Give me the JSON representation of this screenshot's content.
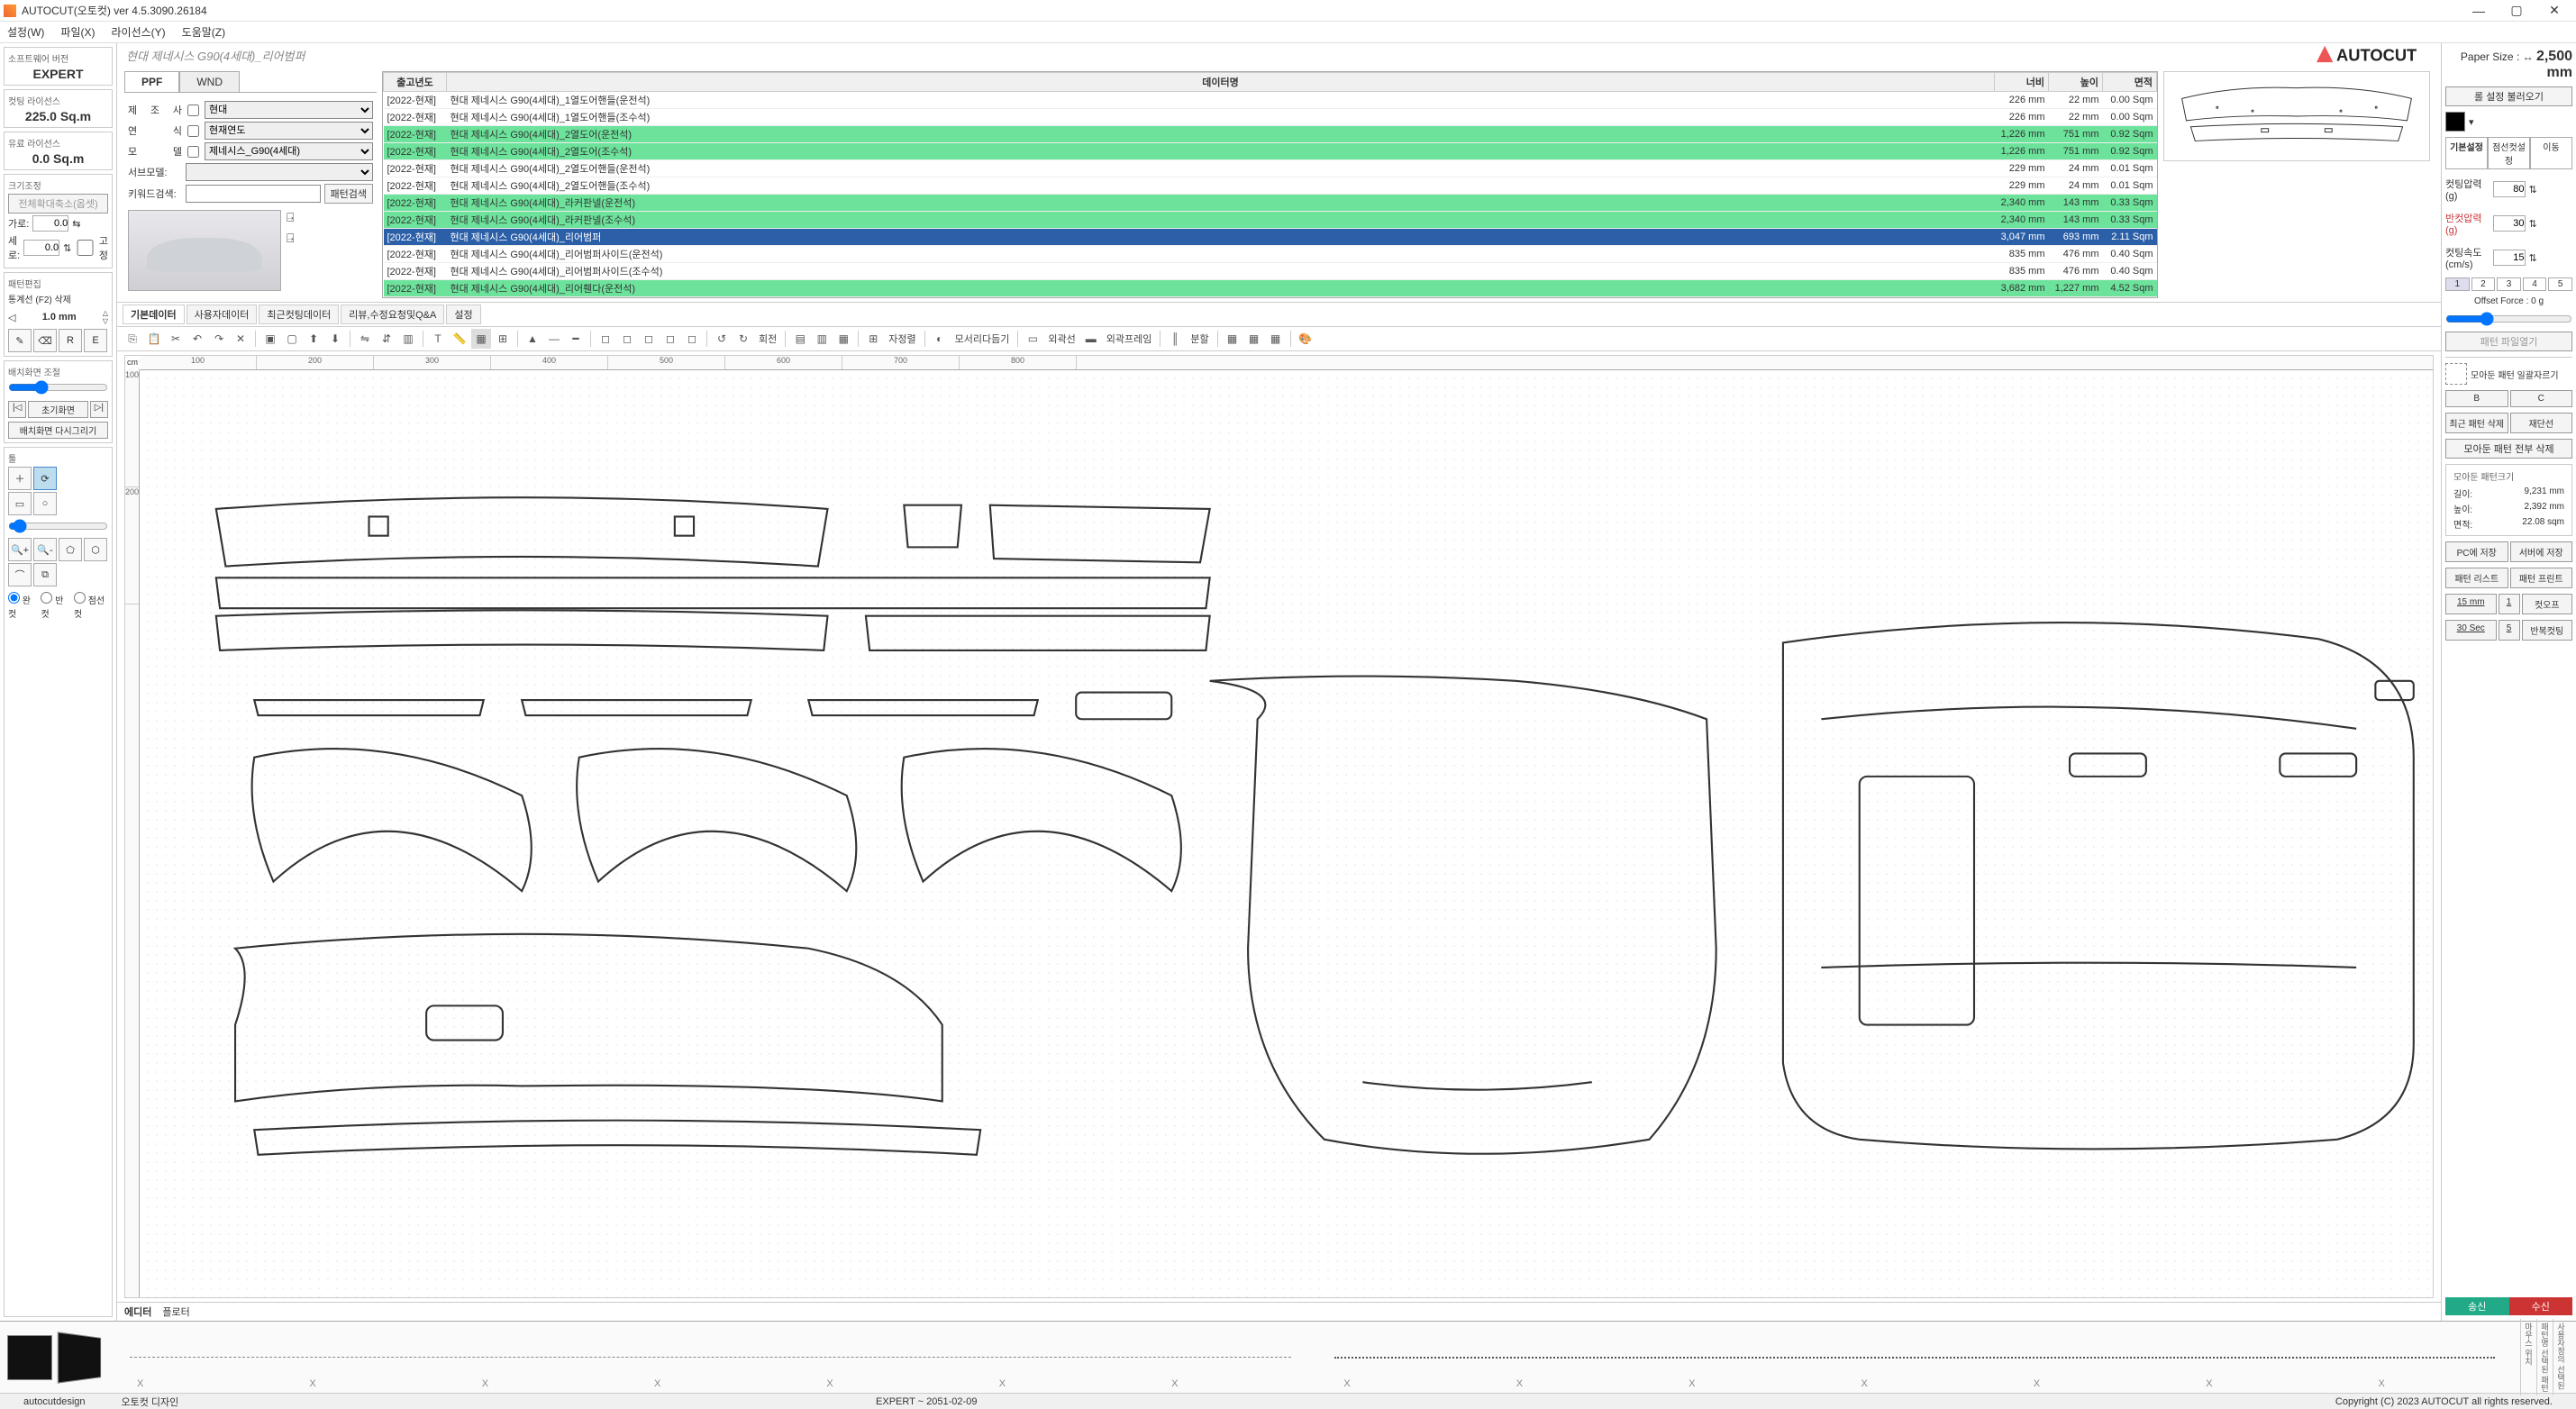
{
  "window": {
    "title": "AUTOCUT(오토컷) ver 4.5.3090.26184"
  },
  "menubar": [
    "설정(W)",
    "파일(X)",
    "라이선스(Y)",
    "도움말(Z)"
  ],
  "leftpanel": {
    "swver_label": "소프트웨어 버전",
    "swver_value": "EXPERT",
    "cutlic_label": "컷팅 라이선스",
    "cutlic_value": "225.0 Sq.m",
    "paidlic_label": "유료 라이선스",
    "paidlic_value": "0.0 Sq.m",
    "resize_label": "크기조정",
    "resize_btn": "전체확대축소(옵셋)",
    "width_label": "가로:",
    "width_val": "0.0",
    "height_label": "세로:",
    "height_val": "0.0",
    "lock_label": "고정",
    "pattern_edit_label": "패턴편집",
    "tangent_label": "통계선 (F2)  삭제",
    "step_value": "1.0 mm",
    "layout_label": "배치화면 조절",
    "initview_btn": "초기화면",
    "redraw_btn": "배치화면 다시그리기",
    "tool_label": "툴",
    "cut_full": "완 컷",
    "cut_half": "반 컷",
    "cut_dot": "점선컷"
  },
  "breadcrumb": "현대 제네시스 G90(4세대)_리어범퍼",
  "search": {
    "tabs": [
      "PPF",
      "WND"
    ],
    "maker_label": "제 조 사",
    "maker_val": "현대",
    "year_label": "연     식",
    "year_val": "현재연도",
    "model_label": "모     델",
    "model_val": "제네시스_G90(4세대)",
    "sub_label": "서브모델:",
    "keyword_label": "키워드검색:",
    "search_btn": "패턴검색"
  },
  "table": {
    "cols": [
      "출고년도",
      "데이터명",
      "너비",
      "높이",
      "면적"
    ],
    "rows": [
      {
        "y": "[2022-현재]",
        "n": "현대 제네시스 G90(4세대)_1열도어핸들(운전석)",
        "w": "226 mm",
        "h": "22 mm",
        "a": "0.00 Sqm",
        "hl": false
      },
      {
        "y": "[2022-현재]",
        "n": "현대 제네시스 G90(4세대)_1열도어핸들(조수석)",
        "w": "226 mm",
        "h": "22 mm",
        "a": "0.00 Sqm",
        "hl": false
      },
      {
        "y": "[2022-현재]",
        "n": "현대 제네시스 G90(4세대)_2열도어(운전석)",
        "w": "1,226 mm",
        "h": "751 mm",
        "a": "0.92 Sqm",
        "hl": true
      },
      {
        "y": "[2022-현재]",
        "n": "현대 제네시스 G90(4세대)_2열도어(조수석)",
        "w": "1,226 mm",
        "h": "751 mm",
        "a": "0.92 Sqm",
        "hl": true
      },
      {
        "y": "[2022-현재]",
        "n": "현대 제네시스 G90(4세대)_2열도어핸들(운전석)",
        "w": "229 mm",
        "h": "24 mm",
        "a": "0.01 Sqm",
        "hl": false
      },
      {
        "y": "[2022-현재]",
        "n": "현대 제네시스 G90(4세대)_2열도어핸들(조수석)",
        "w": "229 mm",
        "h": "24 mm",
        "a": "0.01 Sqm",
        "hl": false
      },
      {
        "y": "[2022-현재]",
        "n": "현대 제네시스 G90(4세대)_라커판넬(운전석)",
        "w": "2,340 mm",
        "h": "143 mm",
        "a": "0.33 Sqm",
        "hl": true
      },
      {
        "y": "[2022-현재]",
        "n": "현대 제네시스 G90(4세대)_라커판넬(조수석)",
        "w": "2,340 mm",
        "h": "143 mm",
        "a": "0.33 Sqm",
        "hl": true
      },
      {
        "y": "[2022-현재]",
        "n": "현대 제네시스 G90(4세대)_리어범퍼",
        "w": "3,047 mm",
        "h": "693 mm",
        "a": "2.11 Sqm",
        "sel": true
      },
      {
        "y": "[2022-현재]",
        "n": "현대 제네시스 G90(4세대)_리어범퍼사이드(운전석)",
        "w": "835 mm",
        "h": "476 mm",
        "a": "0.40 Sqm",
        "hl": false
      },
      {
        "y": "[2022-현재]",
        "n": "현대 제네시스 G90(4세대)_리어범퍼사이드(조수석)",
        "w": "835 mm",
        "h": "476 mm",
        "a": "0.40 Sqm",
        "hl": false
      },
      {
        "y": "[2022-현재]",
        "n": "현대 제네시스 G90(4세대)_리어휀다(운전석)",
        "w": "3,682 mm",
        "h": "1,227 mm",
        "a": "4.52 Sqm",
        "hl": true
      }
    ]
  },
  "subtabs": [
    "기본데이터",
    "사용자데이터",
    "최근컷팅데이터",
    "리뷰,수정요청및Q&A",
    "설정"
  ],
  "toolbar_labels": {
    "rotate": "회전",
    "align": "자정렬",
    "round": "모서리다듬기",
    "outline": "외곽선",
    "outframe": "외곽프레임",
    "split": "분할"
  },
  "ruler": {
    "unit": "cm",
    "h": [
      "100",
      "200",
      "300",
      "400",
      "500",
      "600",
      "700",
      "800"
    ],
    "v": [
      "100",
      "200"
    ]
  },
  "bottomtabs": [
    "에디터",
    "플로터"
  ],
  "right": {
    "papersize_label": "Paper Size : ↔",
    "papersize_val": "2,500 mm",
    "loadsetting_btn": "롤 설정 불러오기",
    "color": "#000000",
    "tabs": [
      "기본설정",
      "점선컷설정",
      "이동"
    ],
    "cut_pressure_label": "컷팅압력(g)",
    "cut_pressure_val": "80",
    "half_pressure_label": "반컷압력(g)",
    "half_pressure_val": "30",
    "cut_speed_label": "컷팅속도(cm/s)",
    "cut_speed_val": "15",
    "offset_label": "Offset Force : 0 g",
    "open_pattern_btn": "패턴 파일열기",
    "batch_cut_label": "모아둔 패턴 일괄자르기",
    "bc_b": "B",
    "bc_c": "C",
    "recent_del": "최근 패턴 삭제",
    "cutline": "재단선",
    "all_del": "모아둔 패턴 전부 삭제",
    "size_title": "모아둔 패턴크기",
    "size_len_l": "길이:",
    "size_len_v": "9,231 mm",
    "size_h_l": "높이:",
    "size_h_v": "2,392 mm",
    "size_a_l": "면적:",
    "size_a_v": "22.08 sqm",
    "save_pc": "PC에 저장",
    "save_srv": "서버에 저장",
    "pat_list": "패턴 리스트",
    "pat_print": "패턴 프린트",
    "mm15": "15 mm",
    "one": "1",
    "cutoff": "컷오프",
    "sec30": "30 Sec",
    "five": "5",
    "repeat": "반복컷팅",
    "send": "송신",
    "recv": "수신"
  },
  "bottom": {
    "vlabels": [
      "마우스 위치",
      "패턴명 선택된 패턴",
      "사용자정의 선택된"
    ]
  },
  "status": {
    "left": "autocutdesign",
    "mid": "오토컷 디자인",
    "center": "EXPERT ~ 2051-02-09",
    "right": "Copyright (C) 2023 AUTOCUT all rights reserved."
  },
  "canvas_style": {
    "stroke": "#333",
    "stroke_width": 1,
    "dot_color": "#ccc",
    "bg": "#ffffff"
  }
}
